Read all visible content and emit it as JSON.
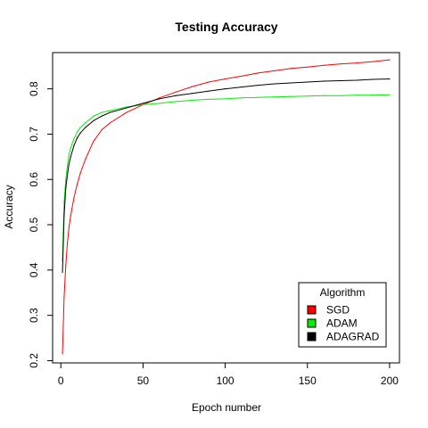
{
  "chart_data": {
    "type": "line",
    "title": "Testing Accuracy",
    "xlabel": "Epoch number",
    "ylabel": "Accuracy",
    "xlim": [
      -5,
      206
    ],
    "ylim": [
      0.195,
      0.88
    ],
    "xticks": [
      0,
      50,
      100,
      150,
      200
    ],
    "yticks": [
      0.2,
      0.3,
      0.4,
      0.5,
      0.6,
      0.7,
      0.8
    ],
    "xtick_labels": [
      "0",
      "50",
      "100",
      "150",
      "200"
    ],
    "ytick_labels": [
      "0.2",
      "0.3",
      "0.4",
      "0.5",
      "0.6",
      "0.7",
      "0.8"
    ],
    "grid": false,
    "legend": {
      "title": "Algorithm",
      "position": "bottom-right"
    },
    "x": [
      1,
      2,
      3,
      4,
      5,
      6,
      8,
      10,
      12,
      15,
      20,
      25,
      30,
      40,
      50,
      60,
      70,
      80,
      90,
      100,
      110,
      120,
      130,
      140,
      150,
      160,
      170,
      180,
      190,
      200
    ],
    "series": [
      {
        "name": "SGD",
        "color": "#ff0000",
        "values": [
          0.215,
          0.34,
          0.41,
          0.46,
          0.495,
          0.52,
          0.56,
          0.59,
          0.615,
          0.645,
          0.685,
          0.71,
          0.725,
          0.748,
          0.765,
          0.78,
          0.793,
          0.805,
          0.815,
          0.822,
          0.828,
          0.835,
          0.84,
          0.845,
          0.848,
          0.852,
          0.855,
          0.857,
          0.86,
          0.864
        ]
      },
      {
        "name": "ADAM",
        "color": "#00ee00",
        "values": [
          0.42,
          0.55,
          0.6,
          0.63,
          0.655,
          0.67,
          0.69,
          0.705,
          0.715,
          0.725,
          0.74,
          0.748,
          0.752,
          0.76,
          0.765,
          0.768,
          0.772,
          0.775,
          0.777,
          0.778,
          0.78,
          0.781,
          0.782,
          0.783,
          0.784,
          0.785,
          0.785,
          0.786,
          0.786,
          0.787
        ]
      },
      {
        "name": "ADAGRAD",
        "color": "#000000",
        "values": [
          0.395,
          0.52,
          0.58,
          0.61,
          0.635,
          0.65,
          0.675,
          0.692,
          0.703,
          0.715,
          0.73,
          0.74,
          0.748,
          0.758,
          0.768,
          0.778,
          0.785,
          0.79,
          0.795,
          0.8,
          0.804,
          0.808,
          0.811,
          0.813,
          0.815,
          0.817,
          0.818,
          0.819,
          0.821,
          0.822
        ]
      }
    ]
  }
}
